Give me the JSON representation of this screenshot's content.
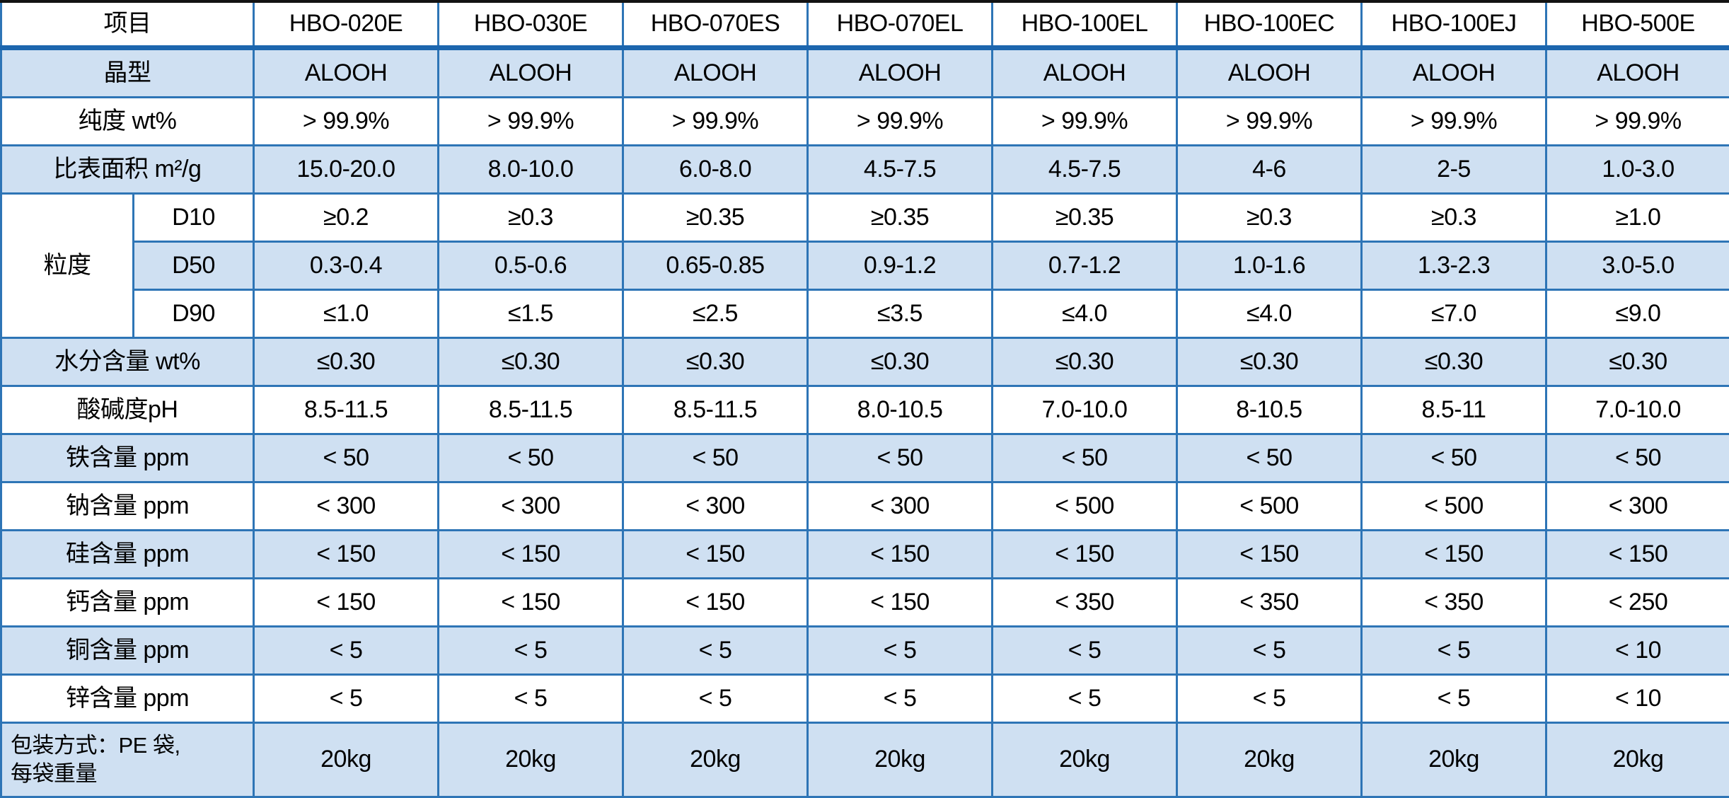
{
  "table": {
    "header": {
      "item_label": "项目",
      "products": [
        "HBO-020E",
        "HBO-030E",
        "HBO-070ES",
        "HBO-070EL",
        "HBO-100EL",
        "HBO-100EC",
        "HBO-100EJ",
        "HBO-500E"
      ]
    },
    "body": [
      {
        "kind": "row",
        "shade": true,
        "label": "晶型",
        "values": [
          "ALOOH",
          "ALOOH",
          "ALOOH",
          "ALOOH",
          "ALOOH",
          "ALOOH",
          "ALOOH",
          "ALOOH"
        ]
      },
      {
        "kind": "row",
        "shade": false,
        "label": "纯度 wt%",
        "values": [
          "> 99.9%",
          "> 99.9%",
          "> 99.9%",
          "> 99.9%",
          "> 99.9%",
          "> 99.9%",
          "> 99.9%",
          "> 99.9%"
        ]
      },
      {
        "kind": "row",
        "shade": true,
        "label": "比表面积 m²/g",
        "values": [
          "15.0-20.0",
          "8.0-10.0",
          "6.0-8.0",
          "4.5-7.5",
          "4.5-7.5",
          "4-6",
          "2-5",
          "1.0-3.0"
        ]
      },
      {
        "kind": "group",
        "label": "粒度",
        "subrows": [
          {
            "shade": false,
            "label": "D10",
            "values": [
              "≥0.2",
              "≥0.3",
              "≥0.35",
              "≥0.35",
              "≥0.35",
              "≥0.3",
              "≥0.3",
              "≥1.0"
            ]
          },
          {
            "shade": true,
            "label": "D50",
            "values": [
              "0.3-0.4",
              "0.5-0.6",
              "0.65-0.85",
              "0.9-1.2",
              "0.7-1.2",
              "1.0-1.6",
              "1.3-2.3",
              "3.0-5.0"
            ]
          },
          {
            "shade": false,
            "label": "D90",
            "values": [
              "≤1.0",
              "≤1.5",
              "≤2.5",
              "≤3.5",
              "≤4.0",
              "≤4.0",
              "≤7.0",
              "≤9.0"
            ]
          }
        ]
      },
      {
        "kind": "row",
        "shade": true,
        "label": "水分含量 wt%",
        "values": [
          "≤0.30",
          "≤0.30",
          "≤0.30",
          "≤0.30",
          "≤0.30",
          "≤0.30",
          "≤0.30",
          "≤0.30"
        ]
      },
      {
        "kind": "row",
        "shade": false,
        "label": "酸碱度pH",
        "values": [
          "8.5-11.5",
          "8.5-11.5",
          "8.5-11.5",
          "8.0-10.5",
          "7.0-10.0",
          "8-10.5",
          "8.5-11",
          "7.0-10.0"
        ]
      },
      {
        "kind": "row",
        "shade": true,
        "label": "铁含量 ppm",
        "values": [
          "< 50",
          "< 50",
          "< 50",
          "< 50",
          "< 50",
          "< 50",
          "< 50",
          "< 50"
        ]
      },
      {
        "kind": "row",
        "shade": false,
        "label": "钠含量 ppm",
        "values": [
          "< 300",
          "< 300",
          "< 300",
          "< 300",
          "< 500",
          "< 500",
          "< 500",
          "< 300"
        ]
      },
      {
        "kind": "row",
        "shade": true,
        "label": "硅含量 ppm",
        "values": [
          "< 150",
          "< 150",
          "< 150",
          "< 150",
          "< 150",
          "< 150",
          "< 150",
          "< 150"
        ]
      },
      {
        "kind": "row",
        "shade": false,
        "label": "钙含量 ppm",
        "values": [
          "< 150",
          "< 150",
          "< 150",
          "< 150",
          "< 350",
          "< 350",
          "< 350",
          "< 250"
        ]
      },
      {
        "kind": "row",
        "shade": true,
        "label": "铜含量 ppm",
        "values": [
          "< 5",
          "< 5",
          "< 5",
          "< 5",
          "< 5",
          "< 5",
          "< 5",
          "< 10"
        ]
      },
      {
        "kind": "row",
        "shade": false,
        "label": "锌含量 ppm",
        "values": [
          "< 5",
          "< 5",
          "< 5",
          "< 5",
          "< 5",
          "< 5",
          "< 5",
          "< 10"
        ]
      },
      {
        "kind": "packaging",
        "shade": true,
        "label_lines": [
          "包装方式：PE 袋,",
          "每袋重量"
        ],
        "values": [
          "20kg",
          "20kg",
          "20kg",
          "20kg",
          "20kg",
          "20kg",
          "20kg",
          "20kg"
        ]
      }
    ],
    "colors": {
      "shade_bg": "#cfe0f2",
      "grid_line": "#2e75b6",
      "header_rule": "#1c66ae",
      "outer_top": "#131313",
      "text": "#000000"
    }
  }
}
